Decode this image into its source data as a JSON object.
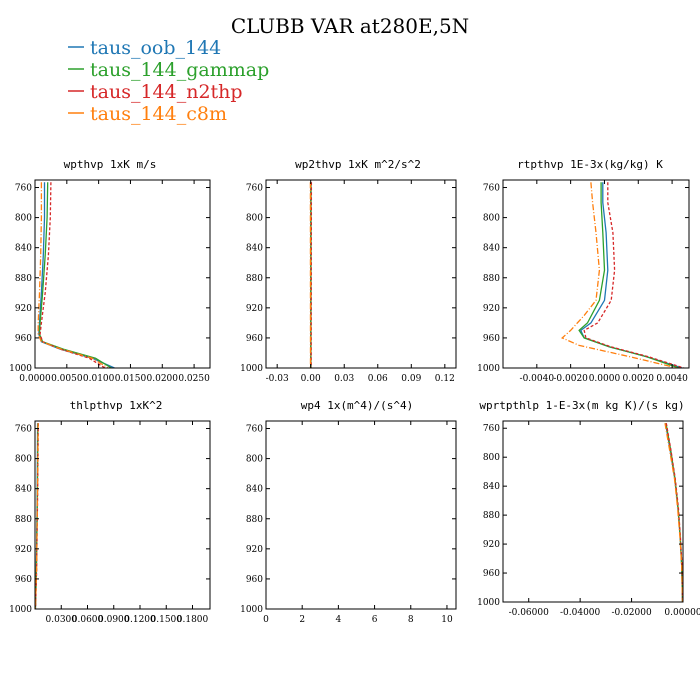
{
  "title": "CLUBB VAR at280E,5N",
  "legend": [
    {
      "label": "taus_oob_144",
      "color": "#1f77b4"
    },
    {
      "label": "taus_144_gammap",
      "color": "#2ca02c"
    },
    {
      "label": "taus_144_n2thp",
      "color": "#d62728"
    },
    {
      "label": "taus_144_c8m",
      "color": "#ff7f0e"
    }
  ],
  "chart_data": [
    {
      "type": "line",
      "title": "wpthvp  1xK m/s",
      "ylim": [
        1000,
        750
      ],
      "yticks": [
        760,
        800,
        840,
        880,
        920,
        960,
        1000
      ],
      "xlim": [
        0,
        0.0275
      ],
      "xticks": [
        0,
        0.005,
        0.01,
        0.015,
        0.02,
        0.025
      ],
      "xtick_labels": [
        "0.0000",
        "0.0050",
        "0.0100",
        "0.0150",
        "0.0200",
        "0.0250"
      ],
      "series": [
        {
          "name": "taus_oob_144",
          "color": "#1f77b4",
          "dash": "",
          "points": [
            [
              0.0015,
              753
            ],
            [
              0.0015,
              800
            ],
            [
              0.0013,
              850
            ],
            [
              0.001,
              900
            ],
            [
              0.0007,
              940
            ],
            [
              0.0006,
              955
            ],
            [
              0.001,
              965
            ],
            [
              0.004,
              975
            ],
            [
              0.009,
              987
            ],
            [
              0.0125,
              1000
            ]
          ]
        },
        {
          "name": "taus_144_gammap",
          "color": "#2ca02c",
          "dash": "",
          "points": [
            [
              0.002,
              753
            ],
            [
              0.0019,
              800
            ],
            [
              0.0016,
              850
            ],
            [
              0.0012,
              900
            ],
            [
              0.0008,
              940
            ],
            [
              0.0007,
              955
            ],
            [
              0.0012,
              965
            ],
            [
              0.0045,
              975
            ],
            [
              0.0095,
              987
            ],
            [
              0.012,
              1000
            ]
          ]
        },
        {
          "name": "taus_144_n2thp",
          "color": "#d62728",
          "dash": "3,2",
          "points": [
            [
              0.0025,
              753
            ],
            [
              0.0024,
              800
            ],
            [
              0.0021,
              850
            ],
            [
              0.0016,
              900
            ],
            [
              0.001,
              940
            ],
            [
              0.0008,
              955
            ],
            [
              0.0012,
              965
            ],
            [
              0.004,
              975
            ],
            [
              0.0085,
              987
            ],
            [
              0.011,
              1000
            ]
          ]
        },
        {
          "name": "taus_144_c8m",
          "color": "#ff7f0e",
          "dash": "6,2,1,2",
          "points": [
            [
              0.001,
              753
            ],
            [
              0.001,
              800
            ],
            [
              0.0009,
              850
            ],
            [
              0.0007,
              900
            ],
            [
              0.0005,
              940
            ],
            [
              0.0005,
              955
            ],
            [
              0.001,
              965
            ],
            [
              0.0042,
              975
            ],
            [
              0.009,
              987
            ],
            [
              0.0115,
              1000
            ]
          ]
        }
      ]
    },
    {
      "type": "line",
      "title": "wp2thvp  1xK m^2/s^2",
      "ylim": [
        1000,
        750
      ],
      "yticks": [
        760,
        800,
        840,
        880,
        920,
        960,
        1000
      ],
      "xlim": [
        -0.04,
        0.13
      ],
      "xticks": [
        -0.03,
        0,
        0.03,
        0.06,
        0.09,
        0.12
      ],
      "xtick_labels": [
        "-0.03",
        "0.00",
        "0.03",
        "0.06",
        "0.09",
        "0.12"
      ],
      "series": [
        {
          "name": "taus_oob_144",
          "color": "#1f77b4",
          "dash": "",
          "points": [
            [
              0.0,
              753
            ],
            [
              0.0,
              1000
            ]
          ]
        },
        {
          "name": "taus_144_gammap",
          "color": "#2ca02c",
          "dash": "",
          "points": [
            [
              0.0003,
              753
            ],
            [
              0.0002,
              1000
            ]
          ]
        },
        {
          "name": "taus_144_n2thp",
          "color": "#d62728",
          "dash": "3,2",
          "points": [
            [
              0.0006,
              753
            ],
            [
              0.0004,
              1000
            ]
          ]
        },
        {
          "name": "taus_144_c8m",
          "color": "#ff7f0e",
          "dash": "6,2,1,2",
          "points": [
            [
              -0.0003,
              753
            ],
            [
              -0.0002,
              1000
            ]
          ]
        }
      ]
    },
    {
      "type": "line",
      "title": "rtpthvp  1E-3x(kg/kg) K",
      "ylim": [
        1000,
        750
      ],
      "yticks": [
        760,
        800,
        840,
        880,
        920,
        960,
        1000
      ],
      "xlim": [
        -0.006,
        0.005
      ],
      "xticks": [
        -0.004,
        -0.002,
        0,
        0.002,
        0.004
      ],
      "xtick_labels": [
        "-0.0040",
        "-0.0020",
        "0.0000",
        "0.0020",
        "0.0040"
      ],
      "series": [
        {
          "name": "taus_oob_144",
          "color": "#1f77b4",
          "dash": "",
          "points": [
            [
              -0.0001,
              753
            ],
            [
              -0.0001,
              780
            ],
            [
              0.0001,
              820
            ],
            [
              0.0002,
              870
            ],
            [
              0.0,
              910
            ],
            [
              -0.0008,
              940
            ],
            [
              -0.0014,
              950
            ],
            [
              -0.0012,
              960
            ],
            [
              0.0003,
              972
            ],
            [
              0.0025,
              985
            ],
            [
              0.0046,
              1000
            ]
          ]
        },
        {
          "name": "taus_144_gammap",
          "color": "#2ca02c",
          "dash": "",
          "points": [
            [
              -0.0002,
              753
            ],
            [
              -0.0002,
              780
            ],
            [
              -0.0001,
              820
            ],
            [
              0.0,
              870
            ],
            [
              -0.0003,
              910
            ],
            [
              -0.001,
              940
            ],
            [
              -0.0015,
              950
            ],
            [
              -0.0012,
              960
            ],
            [
              0.0003,
              972
            ],
            [
              0.0025,
              985
            ],
            [
              0.0044,
              1000
            ]
          ]
        },
        {
          "name": "taus_144_n2thp",
          "color": "#d62728",
          "dash": "3,2",
          "points": [
            [
              0.0002,
              753
            ],
            [
              0.0002,
              780
            ],
            [
              0.0005,
              820
            ],
            [
              0.0006,
              870
            ],
            [
              0.0004,
              910
            ],
            [
              -0.0004,
              940
            ],
            [
              -0.0012,
              950
            ],
            [
              -0.0011,
              960
            ],
            [
              0.0004,
              972
            ],
            [
              0.0026,
              985
            ],
            [
              0.0047,
              1000
            ]
          ]
        },
        {
          "name": "taus_144_c8m",
          "color": "#ff7f0e",
          "dash": "6,2,1,2",
          "points": [
            [
              -0.0008,
              753
            ],
            [
              -0.0007,
              780
            ],
            [
              -0.0005,
              820
            ],
            [
              -0.0003,
              870
            ],
            [
              -0.0005,
              910
            ],
            [
              -0.0012,
              930
            ],
            [
              -0.002,
              950
            ],
            [
              -0.0025,
              960
            ],
            [
              -0.0015,
              970
            ],
            [
              0.0015,
              985
            ],
            [
              0.0043,
              1000
            ]
          ]
        }
      ]
    },
    {
      "type": "line",
      "title": "thlpthvp  1xK^2",
      "ylim": [
        1000,
        750
      ],
      "yticks": [
        760,
        800,
        840,
        880,
        920,
        960,
        1000
      ],
      "xlim": [
        0,
        0.2
      ],
      "xticks": [
        0.03,
        0.06,
        0.09,
        0.12,
        0.15,
        0.18
      ],
      "xtick_labels": [
        "0.0300",
        "0.0600",
        "0.0900",
        "0.1200",
        "0.1500",
        "0.1800"
      ],
      "series": [
        {
          "name": "taus_oob_144",
          "color": "#1f77b4",
          "dash": "",
          "points": [
            [
              0.003,
              753
            ],
            [
              0.0025,
              850
            ],
            [
              0.0015,
              950
            ],
            [
              0.0005,
              1000
            ]
          ]
        },
        {
          "name": "taus_144_gammap",
          "color": "#2ca02c",
          "dash": "",
          "points": [
            [
              0.0033,
              753
            ],
            [
              0.0027,
              850
            ],
            [
              0.0016,
              950
            ],
            [
              0.0005,
              1000
            ]
          ]
        },
        {
          "name": "taus_144_n2thp",
          "color": "#d62728",
          "dash": "3,2",
          "points": [
            [
              0.0038,
              753
            ],
            [
              0.003,
              850
            ],
            [
              0.0018,
              950
            ],
            [
              0.0006,
              1000
            ]
          ]
        },
        {
          "name": "taus_144_c8m",
          "color": "#ff7f0e",
          "dash": "6,2,1,2",
          "points": [
            [
              0.0035,
              753
            ],
            [
              0.0028,
              850
            ],
            [
              0.0017,
              950
            ],
            [
              0.0005,
              1000
            ]
          ]
        }
      ]
    },
    {
      "type": "line",
      "title": "wp4  1x(m^4)/(s^4)",
      "ylim": [
        1000,
        750
      ],
      "yticks": [
        760,
        800,
        840,
        880,
        920,
        960,
        1000
      ],
      "xlim": [
        0,
        10.5
      ],
      "xticks": [
        0,
        2,
        4,
        6,
        8,
        10
      ],
      "xtick_labels": [
        "0",
        "2",
        "4",
        "6",
        "8",
        "10"
      ],
      "series": []
    },
    {
      "type": "line",
      "title": "wprtpthlp  1-E-3x(m kg K)/(s kg)",
      "ylim": [
        1000,
        750
      ],
      "yticks": [
        760,
        800,
        840,
        880,
        920,
        960,
        1000
      ],
      "xlim": [
        -0.07,
        0
      ],
      "xticks": [
        -0.06,
        -0.04,
        -0.02,
        0
      ],
      "xtick_labels": [
        "-0.06000",
        "-0.04000",
        "-0.02000",
        "0.00000"
      ],
      "series": [
        {
          "name": "taus_oob_144",
          "color": "#1f77b4",
          "dash": "",
          "points": [
            [
              -0.0068,
              753
            ],
            [
              -0.005,
              790
            ],
            [
              -0.0032,
              830
            ],
            [
              -0.002,
              870
            ],
            [
              -0.0011,
              910
            ],
            [
              -0.0005,
              950
            ],
            [
              -0.0002,
              1000
            ]
          ]
        },
        {
          "name": "taus_144_gammap",
          "color": "#2ca02c",
          "dash": "",
          "points": [
            [
              -0.0066,
              753
            ],
            [
              -0.0048,
              790
            ],
            [
              -0.0031,
              830
            ],
            [
              -0.0019,
              870
            ],
            [
              -0.0011,
              910
            ],
            [
              -0.0005,
              950
            ],
            [
              -0.0002,
              1000
            ]
          ]
        },
        {
          "name": "taus_144_n2thp",
          "color": "#d62728",
          "dash": "3,2",
          "points": [
            [
              -0.0065,
              753
            ],
            [
              -0.0047,
              790
            ],
            [
              -0.003,
              830
            ],
            [
              -0.0018,
              870
            ],
            [
              -0.001,
              910
            ],
            [
              -0.0004,
              950
            ],
            [
              -0.0002,
              1000
            ]
          ]
        },
        {
          "name": "taus_144_c8m",
          "color": "#ff7f0e",
          "dash": "6,2,1,2",
          "points": [
            [
              -0.007,
              753
            ],
            [
              -0.0052,
              790
            ],
            [
              -0.0033,
              830
            ],
            [
              -0.0021,
              870
            ],
            [
              -0.0012,
              910
            ],
            [
              -0.0005,
              950
            ],
            [
              -0.0002,
              1000
            ]
          ]
        }
      ]
    }
  ]
}
